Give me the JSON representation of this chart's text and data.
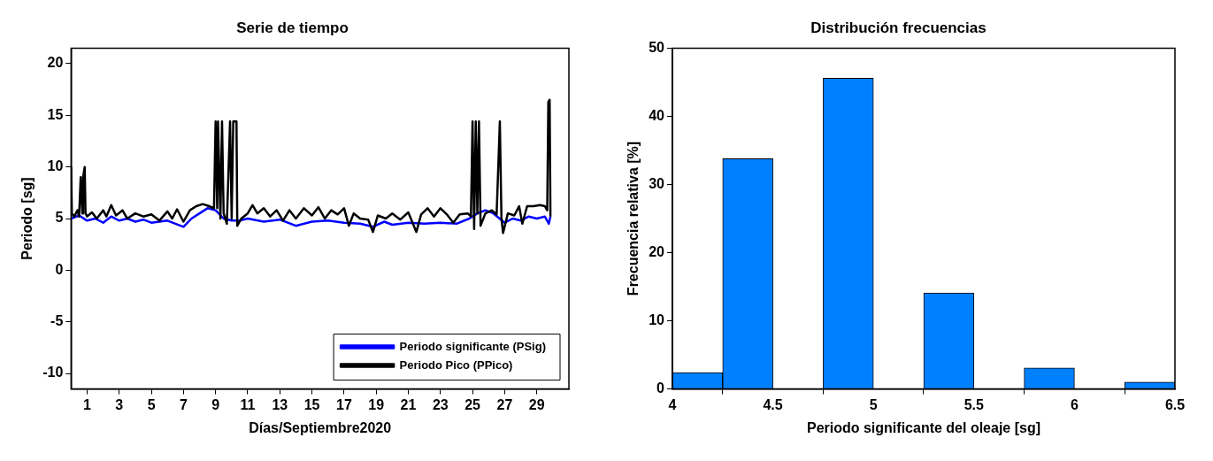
{
  "chart_data": [
    {
      "type": "line",
      "title": "Serie de tiempo",
      "xlabel": "Días/Septiembre2020",
      "ylabel": "Periodo [sg]",
      "xlim": [
        0,
        31
      ],
      "xticks": [
        1,
        3,
        5,
        7,
        9,
        11,
        13,
        15,
        17,
        19,
        21,
        23,
        25,
        27,
        29
      ],
      "ylim": [
        -11.5,
        21.5
      ],
      "yticks": [
        -10,
        -5,
        0,
        5,
        10,
        15,
        20
      ],
      "grid": false,
      "legend": "bottom right",
      "series": [
        {
          "name": "Periodo significante (PSig)",
          "color": "#0000ff",
          "x": [
            0.0,
            0.5,
            1.0,
            1.5,
            2.0,
            2.5,
            3.0,
            3.5,
            4.0,
            4.5,
            5.0,
            5.5,
            6.0,
            6.5,
            7.0,
            7.5,
            8.0,
            8.5,
            9.0,
            9.5,
            10.0,
            10.5,
            11.0,
            12.0,
            13.0,
            14.0,
            15.0,
            16.0,
            17.0,
            18.0,
            18.8,
            19.5,
            20.0,
            21.0,
            22.0,
            23.0,
            24.0,
            24.8,
            25.3,
            25.8,
            26.3,
            27.0,
            27.5,
            28.0,
            28.5,
            29.0,
            29.5,
            29.75,
            29.85
          ],
          "values": [
            5.0,
            5.3,
            4.8,
            5.0,
            4.6,
            5.2,
            4.8,
            5.0,
            4.7,
            4.9,
            4.6,
            4.7,
            4.8,
            4.5,
            4.2,
            5.0,
            5.5,
            6.0,
            5.8,
            5.0,
            4.8,
            4.8,
            5.0,
            4.7,
            4.9,
            4.3,
            4.7,
            4.8,
            4.6,
            4.5,
            4.2,
            4.7,
            4.4,
            4.6,
            4.5,
            4.6,
            4.5,
            5.0,
            5.5,
            5.8,
            5.5,
            4.6,
            5.0,
            4.8,
            5.2,
            5.0,
            5.2,
            4.5,
            5.2
          ]
        },
        {
          "name": "Periodo Pico (PPico)",
          "color": "#000000",
          "x": [
            0.0,
            0.05,
            0.2,
            0.4,
            0.5,
            0.6,
            0.7,
            0.75,
            0.85,
            0.9,
            1.0,
            1.3,
            1.6,
            2.0,
            2.2,
            2.5,
            2.8,
            3.2,
            3.5,
            4.0,
            4.5,
            5.0,
            5.5,
            6.0,
            6.3,
            6.6,
            7.0,
            7.4,
            7.8,
            8.2,
            8.6,
            8.9,
            9.0,
            9.1,
            9.15,
            9.3,
            9.4,
            9.5,
            9.7,
            9.9,
            10.0,
            10.1,
            10.3,
            10.35,
            10.6,
            11.0,
            11.3,
            11.6,
            12.0,
            12.4,
            12.8,
            13.2,
            13.6,
            14.0,
            14.5,
            15.0,
            15.4,
            15.8,
            16.2,
            16.6,
            17.0,
            17.3,
            17.6,
            18.0,
            18.5,
            18.8,
            19.1,
            19.6,
            20.0,
            20.5,
            21.0,
            21.5,
            21.8,
            22.2,
            22.6,
            23.0,
            23.4,
            23.8,
            24.2,
            24.7,
            24.9,
            25.0,
            25.1,
            25.2,
            25.3,
            25.4,
            25.5,
            25.8,
            26.2,
            26.5,
            26.7,
            26.8,
            26.9,
            27.2,
            27.6,
            27.9,
            28.1,
            28.4,
            28.8,
            29.2,
            29.5,
            29.65,
            29.72,
            29.8,
            29.85
          ],
          "values": [
            10,
            5.5,
            5.2,
            5.8,
            5.2,
            9,
            5.5,
            9,
            10,
            5.5,
            5.2,
            5.6,
            5.0,
            5.8,
            5.2,
            6.3,
            5.3,
            5.8,
            5.0,
            5.5,
            5.2,
            5.4,
            4.8,
            5.7,
            5.0,
            5.9,
            4.7,
            5.8,
            6.2,
            6.4,
            6.2,
            6.0,
            14.4,
            6.0,
            14.4,
            5.0,
            14.4,
            5.5,
            4.5,
            14.4,
            5.0,
            14.4,
            14.4,
            4.3,
            5.0,
            5.5,
            6.3,
            5.5,
            6.0,
            5.2,
            5.8,
            4.8,
            5.8,
            5.0,
            6.0,
            5.3,
            6.1,
            5.0,
            5.8,
            5.4,
            6.0,
            4.3,
            5.5,
            5.0,
            4.9,
            3.7,
            5.3,
            5.0,
            5.5,
            4.9,
            5.6,
            3.7,
            5.4,
            6.0,
            5.2,
            6.0,
            5.4,
            4.6,
            5.4,
            5.5,
            5.2,
            14.4,
            4.0,
            14.4,
            5.5,
            14.4,
            4.3,
            5.5,
            5.8,
            5.4,
            14.4,
            5.0,
            3.6,
            5.5,
            5.3,
            6.2,
            4.5,
            6.2,
            6.2,
            6.3,
            6.2,
            5.8,
            16.3,
            16.5,
            5.2
          ]
        }
      ]
    },
    {
      "type": "histogram",
      "title": "Distribución frecuencias",
      "xlabel": "Periodo significante del oleaje [sg]",
      "ylabel": "Frecuencia relativa [%]",
      "bins": [
        4,
        4.25,
        4.5,
        4.75,
        5,
        5.25,
        5.5,
        5.75,
        6,
        6.25,
        6.5
      ],
      "values": [
        2.4,
        33.8,
        0,
        45.6,
        0,
        14.1,
        0,
        3.1,
        0,
        1.0
      ],
      "color": "#0080ff",
      "xlim": [
        4,
        6.5
      ],
      "xticks": [
        4,
        4.5,
        5,
        5.5,
        6,
        6.5
      ],
      "ylim": [
        0,
        50
      ],
      "yticks": [
        0,
        10,
        20,
        30,
        40,
        50
      ],
      "grid": false
    }
  ]
}
